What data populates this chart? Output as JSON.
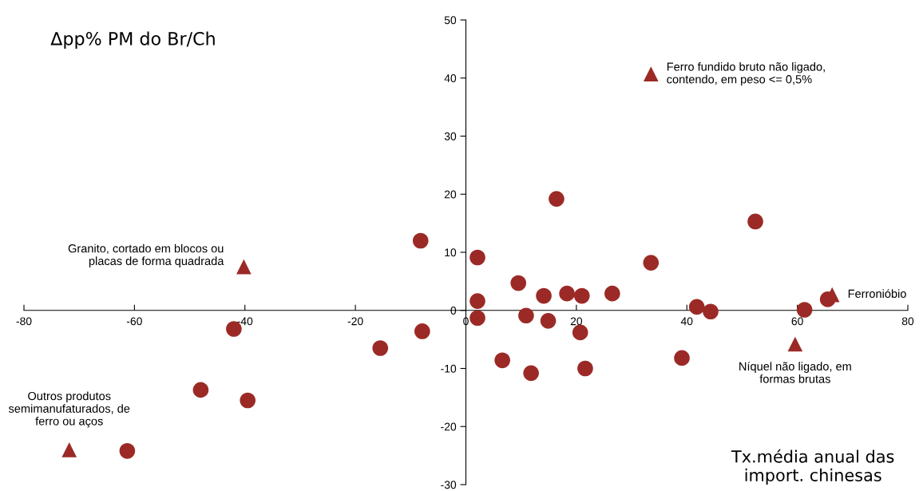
{
  "chart_data": {
    "type": "scatter",
    "xlabel": "Tx.média anual das\nimport. chinesas",
    "ylabel": "Δpp% PM do Br/Ch",
    "xlim": [
      -80,
      80
    ],
    "xticks": [
      -80,
      -60,
      -40,
      -20,
      0,
      20,
      40,
      60,
      80
    ],
    "ylim": [
      -30,
      50
    ],
    "yticks": [
      -30,
      -20,
      -10,
      0,
      10,
      20,
      30,
      40,
      50
    ],
    "grid": false,
    "legend": false,
    "series": [
      {
        "color": "#9b2a26",
        "marker": "circle",
        "x": [
          -8.2,
          2.1,
          2.1,
          2.1,
          -7.9,
          -42.0,
          -15.5,
          -48.0,
          -39.5,
          -61.3,
          16.4,
          52.4,
          33.5,
          9.5,
          14.1,
          18.3,
          21.0,
          26.5,
          10.9,
          14.9,
          20.7,
          6.6,
          11.8,
          21.6,
          39.1,
          41.8,
          44.3,
          61.3,
          65.5
        ],
        "values": [
          12.0,
          9.1,
          1.6,
          -1.3,
          -3.6,
          -3.2,
          -6.5,
          -13.7,
          -15.5,
          -24.2,
          19.2,
          15.3,
          8.2,
          4.7,
          2.5,
          2.9,
          2.5,
          2.9,
          -0.9,
          -1.8,
          -3.8,
          -8.6,
          -10.8,
          -10.0,
          -8.2,
          0.6,
          -0.2,
          0.1,
          1.9
        ]
      },
      {
        "color": "#9b2a26",
        "marker": "triangle",
        "x": [
          33.5,
          -40.2,
          -71.8,
          66.3,
          59.6
        ],
        "values": [
          40.7,
          7.5,
          -24.0,
          2.7,
          -5.8
        ]
      }
    ],
    "annotations": [
      {
        "text": "Ferro fundido bruto não ligado,\ncontendo, em peso <= 0,5%",
        "x": 33.5,
        "y": 40.7
      },
      {
        "text": "Granito, cortado em blocos ou\nplacas de forma quadrada",
        "x": -40.2,
        "y": 7.5
      },
      {
        "text": "Outros produtos\nsemimanufaturados, de\nferro ou aços",
        "x": -71.8,
        "y": -24.0
      },
      {
        "text": "Ferronióbio",
        "x": 66.3,
        "y": 2.7
      },
      {
        "text": "Níquel não ligado, em\nformas brutas",
        "x": 59.6,
        "y": -5.8
      }
    ]
  }
}
